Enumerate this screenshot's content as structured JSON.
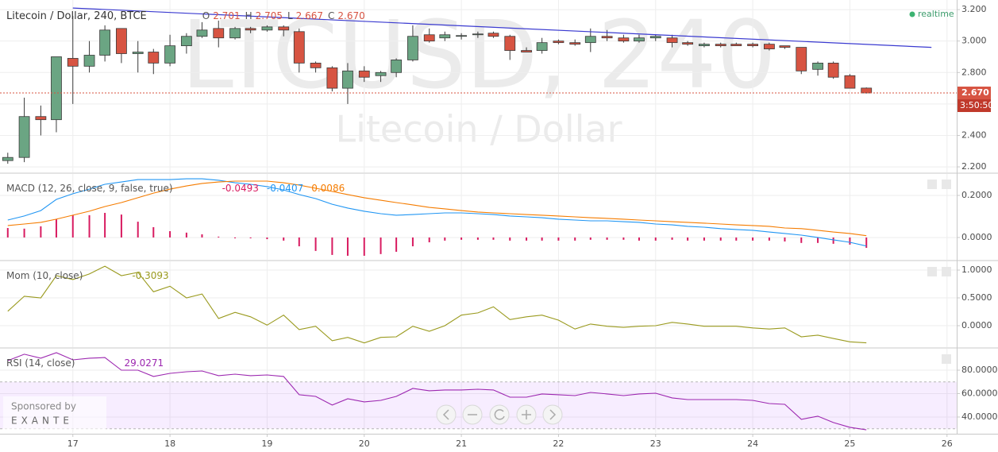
{
  "chart_data": [
    {
      "type": "candlestick",
      "title": "Litecoin / Dollar, 240, BTCE",
      "ohlc_labels": [
        "O",
        "H",
        "L",
        "C"
      ],
      "ohlc_value_labels": [
        "2.701",
        "2.705",
        "2.667",
        "2.670"
      ],
      "watermark": [
        "LTCUSD, 240",
        "Litecoin / Dollar"
      ],
      "status": "realtime",
      "countdown": "3:50:50",
      "up_color": "#6ba583",
      "down_color": "#d75442",
      "grid": true,
      "x": [
        16.33,
        16.5,
        16.67,
        16.83,
        17,
        17.17,
        17.33,
        17.5,
        17.67,
        17.83,
        18,
        18.17,
        18.33,
        18.5,
        18.67,
        18.83,
        19,
        19.17,
        19.33,
        19.5,
        19.67,
        19.83,
        20,
        20.17,
        20.33,
        20.5,
        20.67,
        20.83,
        21,
        21.17,
        21.33,
        21.5,
        21.67,
        21.83,
        22,
        22.17,
        22.33,
        22.5,
        22.67,
        22.83,
        23,
        23.17,
        23.33,
        23.5,
        23.67,
        23.83,
        24,
        24.17,
        24.33,
        24.5,
        24.67,
        24.83,
        25,
        25.17
      ],
      "open": [
        2.24,
        2.26,
        2.52,
        2.5,
        2.89,
        2.84,
        2.91,
        3.08,
        2.92,
        2.93,
        2.86,
        2.97,
        3.03,
        3.08,
        3.02,
        3.08,
        3.07,
        3.09,
        3.06,
        2.86,
        2.83,
        2.7,
        2.81,
        2.78,
        2.8,
        2.88,
        3.04,
        3.02,
        3.03,
        3.04,
        3.05,
        3.03,
        2.94,
        2.94,
        3.0,
        2.99,
        2.99,
        3.03,
        3.02,
        3.0,
        3.02,
        3.02,
        2.99,
        2.97,
        2.98,
        2.98,
        2.98,
        2.98,
        2.97,
        2.96,
        2.82,
        2.86,
        2.78,
        2.701
      ],
      "high": [
        2.29,
        2.64,
        2.59,
        2.9,
        3.16,
        3.0,
        3.1,
        3.08,
        3.0,
        2.95,
        3.04,
        3.05,
        3.12,
        3.13,
        3.09,
        3.09,
        3.1,
        3.1,
        3.08,
        2.87,
        2.84,
        2.86,
        2.84,
        2.81,
        2.89,
        3.1,
        3.08,
        3.06,
        3.05,
        3.06,
        3.06,
        3.04,
        2.96,
        3.02,
        3.01,
        3.01,
        3.08,
        3.07,
        3.04,
        3.04,
        3.04,
        3.04,
        3.0,
        2.99,
        2.99,
        2.99,
        2.99,
        2.99,
        2.97,
        2.96,
        2.87,
        2.87,
        2.79,
        2.705
      ],
      "low": [
        2.22,
        2.23,
        2.4,
        2.42,
        2.6,
        2.8,
        2.87,
        2.86,
        2.8,
        2.79,
        2.84,
        2.92,
        3.02,
        2.96,
        3.01,
        3.05,
        3.06,
        3.03,
        2.8,
        2.8,
        2.68,
        2.6,
        2.74,
        2.74,
        2.77,
        2.87,
        2.99,
        3.0,
        3.01,
        3.02,
        3.02,
        2.88,
        2.93,
        2.92,
        2.98,
        2.97,
        2.93,
        3.0,
        2.99,
        2.99,
        3.0,
        2.96,
        2.97,
        2.96,
        2.96,
        2.97,
        2.96,
        2.94,
        2.95,
        2.79,
        2.78,
        2.76,
        2.7,
        2.667
      ],
      "close": [
        2.26,
        2.52,
        2.5,
        2.9,
        2.84,
        2.91,
        3.07,
        2.92,
        2.93,
        2.86,
        2.97,
        3.03,
        3.07,
        3.02,
        3.08,
        3.07,
        3.09,
        3.07,
        2.86,
        2.83,
        2.7,
        2.81,
        2.77,
        2.8,
        2.88,
        3.03,
        3.0,
        3.04,
        3.035,
        3.045,
        3.03,
        2.94,
        2.93,
        2.99,
        2.99,
        2.98,
        3.03,
        3.02,
        3.0,
        3.02,
        3.03,
        2.99,
        2.98,
        2.98,
        2.97,
        2.97,
        2.97,
        2.95,
        2.96,
        2.81,
        2.86,
        2.77,
        2.7,
        2.67
      ],
      "trendline": {
        "x": [
          17,
          25.84
        ],
        "y": [
          3.21,
          2.96
        ],
        "color": "#3a3ad0"
      },
      "xlim": [
        16.25,
        26.1
      ],
      "xticks": [
        17,
        18,
        19,
        20,
        21,
        22,
        23,
        24,
        25,
        26
      ],
      "ylim": [
        2.165,
        3.261
      ],
      "yticks": [
        {
          "value": 2.2,
          "label": "2.200"
        },
        {
          "value": 2.4,
          "label": "2.400"
        },
        {
          "value": 2.6,
          "label": "2.600"
        },
        {
          "value": 2.8,
          "label": "2.800"
        },
        {
          "value": 3.0,
          "label": "3.000"
        },
        {
          "value": 3.2,
          "label": "3.200"
        }
      ]
    },
    {
      "type": "line",
      "title": "MACD (12, 26, close, 9, false, true)",
      "grid": true,
      "ylim": [
        -0.106,
        0.302
      ],
      "yticks": [
        {
          "value": 0,
          "label": "0.0000"
        },
        {
          "value": 0.2,
          "label": "0.2000"
        }
      ],
      "series": [
        {
          "kind": "bar",
          "color": "#d81b60",
          "values": [
            0.045,
            0.042,
            0.053,
            0.087,
            0.106,
            0.106,
            0.117,
            0.109,
            0.075,
            0.049,
            0.03,
            0.023,
            0.015,
            0.004,
            -0.004,
            -0.004,
            -0.008,
            -0.015,
            -0.042,
            -0.064,
            -0.083,
            -0.087,
            -0.087,
            -0.079,
            -0.068,
            -0.042,
            -0.023,
            -0.015,
            -0.011,
            -0.011,
            -0.011,
            -0.015,
            -0.015,
            -0.015,
            -0.015,
            -0.015,
            -0.011,
            -0.011,
            -0.011,
            -0.015,
            -0.015,
            -0.011,
            -0.015,
            -0.015,
            -0.015,
            -0.015,
            -0.015,
            -0.015,
            -0.019,
            -0.026,
            -0.026,
            -0.03,
            -0.034,
            -0.0493
          ]
        },
        {
          "kind": "line",
          "color": "#2196f3",
          "values": [
            0.083,
            0.102,
            0.128,
            0.181,
            0.208,
            0.23,
            0.253,
            0.264,
            0.275,
            0.275,
            0.275,
            0.279,
            0.279,
            0.272,
            0.26,
            0.253,
            0.242,
            0.226,
            0.204,
            0.185,
            0.158,
            0.14,
            0.125,
            0.113,
            0.106,
            0.109,
            0.113,
            0.117,
            0.117,
            0.113,
            0.109,
            0.102,
            0.098,
            0.094,
            0.087,
            0.083,
            0.079,
            0.079,
            0.075,
            0.072,
            0.064,
            0.06,
            0.053,
            0.049,
            0.042,
            0.038,
            0.034,
            0.026,
            0.019,
            0.011,
            0.0,
            -0.011,
            -0.023,
            -0.0407
          ]
        },
        {
          "kind": "line",
          "color": "#f57c00",
          "values": [
            0.057,
            0.064,
            0.072,
            0.087,
            0.106,
            0.125,
            0.147,
            0.166,
            0.189,
            0.211,
            0.23,
            0.245,
            0.257,
            0.264,
            0.268,
            0.268,
            0.268,
            0.26,
            0.249,
            0.234,
            0.219,
            0.204,
            0.189,
            0.177,
            0.166,
            0.155,
            0.143,
            0.136,
            0.128,
            0.121,
            0.117,
            0.113,
            0.109,
            0.106,
            0.102,
            0.098,
            0.094,
            0.091,
            0.087,
            0.083,
            0.079,
            0.075,
            0.072,
            0.068,
            0.064,
            0.06,
            0.057,
            0.053,
            0.045,
            0.042,
            0.034,
            0.026,
            0.019,
            0.0086
          ]
        }
      ]
    },
    {
      "type": "line",
      "title": "Mom (10, close)",
      "grid": true,
      "ylim": [
        -0.386,
        1.157
      ],
      "yticks": [
        {
          "value": 0,
          "label": "0.0000"
        },
        {
          "value": 0.5,
          "label": "0.5000"
        },
        {
          "value": 1,
          "label": "1.0000"
        }
      ],
      "series": [
        {
          "kind": "line",
          "color": "#9a9a1e",
          "values": [
            0.26,
            0.53,
            0.5,
            0.9,
            0.83,
            0.93,
            1.07,
            0.9,
            0.96,
            0.61,
            0.71,
            0.5,
            0.57,
            0.13,
            0.24,
            0.16,
            0.01,
            0.19,
            -0.07,
            -0.01,
            -0.27,
            -0.21,
            -0.31,
            -0.21,
            -0.2,
            -0.01,
            -0.1,
            0.0,
            0.19,
            0.23,
            0.34,
            0.11,
            0.16,
            0.19,
            0.1,
            -0.06,
            0.03,
            -0.01,
            -0.03,
            -0.01,
            0.0,
            0.06,
            0.03,
            -0.01,
            -0.01,
            -0.01,
            -0.04,
            -0.06,
            -0.04,
            -0.2,
            -0.17,
            -0.23,
            -0.29,
            -0.3093
          ]
        }
      ]
    },
    {
      "type": "line",
      "title": "RSI (14, close)",
      "grid": true,
      "band": [
        30,
        70
      ],
      "band_color": "#9915ff",
      "ylim": [
        26.4,
        98.3
      ],
      "yticks": [
        {
          "value": 40,
          "label": "40.0000"
        },
        {
          "value": 60,
          "label": "60.0000"
        },
        {
          "value": 80,
          "label": "80.0000"
        }
      ],
      "series": [
        {
          "kind": "line",
          "color": "#9c27b0",
          "values": [
            88.1,
            93.6,
            90.2,
            94.9,
            88.8,
            90.2,
            90.8,
            80.0,
            80.0,
            74.6,
            77.3,
            78.6,
            79.3,
            75.3,
            76.6,
            75.3,
            75.9,
            74.6,
            59.0,
            57.6,
            50.2,
            55.6,
            52.9,
            54.2,
            57.6,
            64.4,
            62.4,
            63.1,
            63.1,
            63.7,
            63.1,
            56.9,
            56.9,
            59.7,
            59.0,
            58.3,
            61.0,
            59.7,
            58.3,
            59.7,
            60.3,
            56.3,
            54.9,
            54.9,
            54.9,
            54.9,
            54.2,
            51.5,
            50.8,
            38.0,
            40.7,
            35.3,
            31.2,
            29.0271
          ]
        }
      ]
    }
  ],
  "page": {
    "sponsor_label": "Sponsored by",
    "sponsor_name": "EXANTE"
  }
}
